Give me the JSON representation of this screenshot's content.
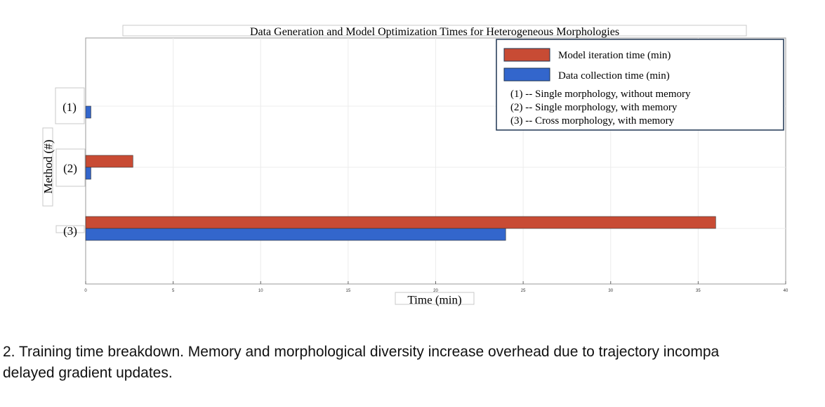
{
  "chart_data": {
    "type": "bar",
    "orientation": "horizontal",
    "title": "Data Generation and Model Optimization Times for Heterogeneous Morphologies",
    "xlabel": "Time (min)",
    "ylabel": "Method (#)",
    "categories": [
      "(1)",
      "(2)",
      "(3)"
    ],
    "series": [
      {
        "name": "Model iteration time (min)",
        "color": "#c84b34",
        "values": [
          0,
          2.7,
          36
        ]
      },
      {
        "name": "Data collection time (min)",
        "color": "#3366cc",
        "values": [
          0.3,
          0.3,
          24
        ]
      }
    ],
    "xlim": [
      0,
      40
    ],
    "xticks": [
      "0",
      "5",
      "10",
      "15",
      "20",
      "25",
      "30",
      "35",
      "40"
    ],
    "grid": true,
    "legend_position": "top-right",
    "legend_notes": [
      "(1) -- Single morphology, without memory",
      "(2) -- Single morphology, with memory",
      "(3) -- Cross morphology, with memory"
    ]
  },
  "caption": {
    "line1": "2.  Training time breakdown. Memory and morphological diversity increase overhead due to trajectory incompa",
    "line2": "delayed gradient updates."
  }
}
